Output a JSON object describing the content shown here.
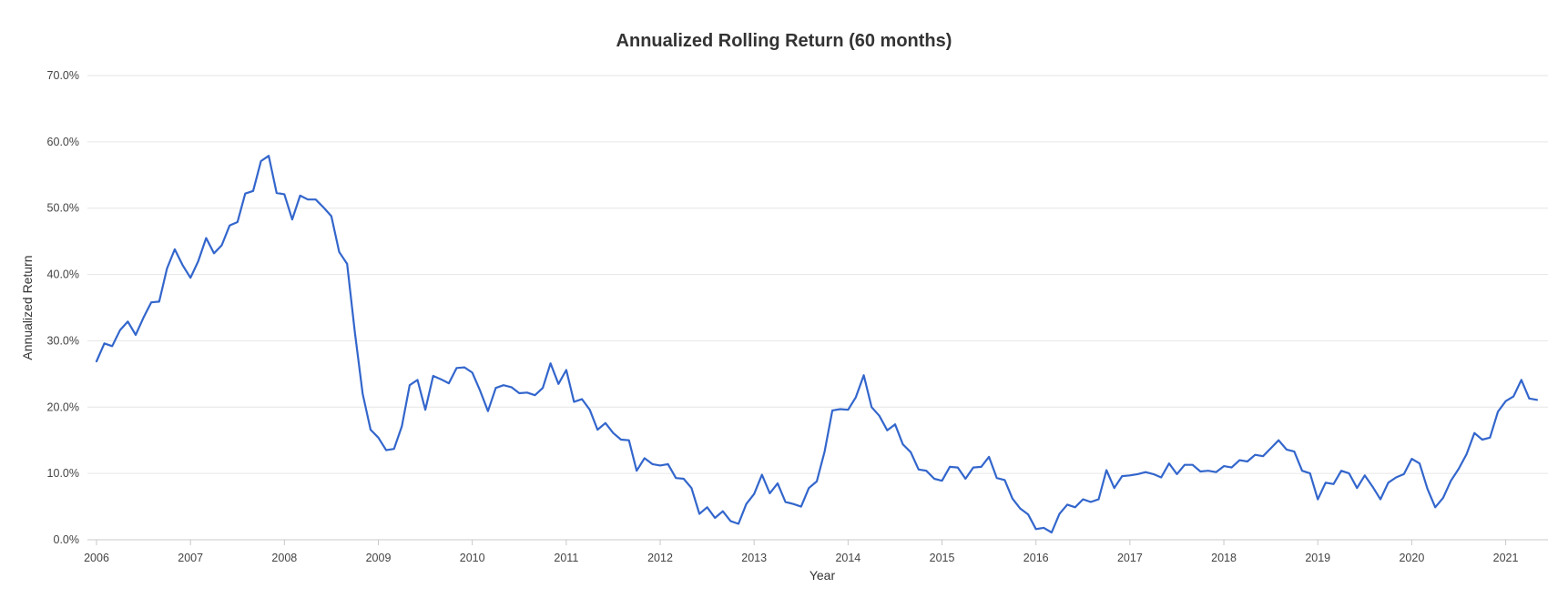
{
  "chart_data": {
    "type": "line",
    "title": "Annualized Rolling Return (60 months)",
    "xlabel": "Year",
    "ylabel": "Annualized Return",
    "xlim": [
      2006,
      2021.45
    ],
    "ylim": [
      0,
      70
    ],
    "x_ticks": [
      "2006",
      "2007",
      "2008",
      "2009",
      "2010",
      "2011",
      "2012",
      "2013",
      "2014",
      "2015",
      "2016",
      "2017",
      "2018",
      "2019",
      "2020",
      "2021"
    ],
    "y_ticks": [
      "0.0%",
      "10.0%",
      "20.0%",
      "30.0%",
      "40.0%",
      "50.0%",
      "60.0%",
      "70.0%"
    ],
    "grid": true,
    "legend": "none",
    "line_color": "#3366cc",
    "series": [
      {
        "x": [
          2006.0,
          2006.083,
          2006.167,
          2006.25,
          2006.333,
          2006.417,
          2006.5,
          2006.583,
          2006.667,
          2006.75,
          2006.833,
          2006.917,
          2007.0,
          2007.083,
          2007.167,
          2007.25,
          2007.333,
          2007.417,
          2007.5,
          2007.583,
          2007.667,
          2007.75,
          2007.833,
          2007.917,
          2008.0,
          2008.083,
          2008.167,
          2008.25,
          2008.333,
          2008.417,
          2008.5,
          2008.583,
          2008.667,
          2008.75,
          2008.833,
          2008.917,
          2009.0,
          2009.083,
          2009.167,
          2009.25,
          2009.333,
          2009.417,
          2009.5,
          2009.583,
          2009.667,
          2009.75,
          2009.833,
          2009.917,
          2010.0,
          2010.083,
          2010.167,
          2010.25,
          2010.333,
          2010.417,
          2010.5,
          2010.583,
          2010.667,
          2010.75,
          2010.833,
          2010.917,
          2011.0,
          2011.083,
          2011.167,
          2011.25,
          2011.333,
          2011.417,
          2011.5,
          2011.583,
          2011.667,
          2011.75,
          2011.833,
          2011.917,
          2012.0,
          2012.083,
          2012.167,
          2012.25,
          2012.333,
          2012.417,
          2012.5,
          2012.583,
          2012.667,
          2012.75,
          2012.833,
          2012.917,
          2013.0,
          2013.083,
          2013.167,
          2013.25,
          2013.333,
          2013.417,
          2013.5,
          2013.583,
          2013.667,
          2013.75,
          2013.833,
          2013.917,
          2014.0,
          2014.083,
          2014.167,
          2014.25,
          2014.333,
          2014.417,
          2014.5,
          2014.583,
          2014.667,
          2014.75,
          2014.833,
          2014.917,
          2015.0,
          2015.083,
          2015.167,
          2015.25,
          2015.333,
          2015.417,
          2015.5,
          2015.583,
          2015.667,
          2015.75,
          2015.833,
          2015.917,
          2016.0,
          2016.083,
          2016.167,
          2016.25,
          2016.333,
          2016.417,
          2016.5,
          2016.583,
          2016.667,
          2016.75,
          2016.833,
          2016.917,
          2017.0,
          2017.083,
          2017.167,
          2017.25,
          2017.333,
          2017.417,
          2017.5,
          2017.583,
          2017.667,
          2017.75,
          2017.833,
          2017.917,
          2018.0,
          2018.083,
          2018.167,
          2018.25,
          2018.333,
          2018.417,
          2018.5,
          2018.583,
          2018.667,
          2018.75,
          2018.833,
          2018.917,
          2019.0,
          2019.083,
          2019.167,
          2019.25,
          2019.333,
          2019.417,
          2019.5,
          2019.583,
          2019.667,
          2019.75,
          2019.833,
          2019.917,
          2020.0,
          2020.083,
          2020.167,
          2020.25,
          2020.333,
          2020.417,
          2020.5,
          2020.583,
          2020.667,
          2020.75,
          2020.833,
          2020.917,
          2021.0,
          2021.083,
          2021.167,
          2021.25,
          2021.333
        ],
        "y": [
          26.9,
          29.6,
          29.2,
          31.6,
          32.9,
          30.9,
          33.5,
          35.8,
          35.9,
          40.9,
          43.8,
          41.4,
          39.5,
          42.0,
          45.5,
          43.2,
          44.4,
          47.4,
          47.9,
          52.2,
          52.6,
          57.1,
          57.9,
          52.3,
          52.1,
          48.3,
          51.9,
          51.3,
          51.3,
          50.1,
          48.8,
          43.4,
          41.6,
          31.3,
          22.0,
          16.6,
          15.4,
          13.5,
          13.7,
          17.1,
          23.3,
          24.1,
          19.6,
          24.7,
          24.2,
          23.6,
          25.9,
          26.0,
          25.2,
          22.5,
          19.4,
          22.9,
          23.3,
          23.0,
          22.1,
          22.2,
          21.8,
          22.9,
          26.6,
          23.5,
          25.6,
          20.8,
          21.2,
          19.6,
          16.6,
          17.6,
          16.1,
          15.1,
          15.0,
          10.4,
          12.3,
          11.4,
          11.2,
          11.4,
          9.3,
          9.2,
          7.8,
          3.9,
          4.9,
          3.3,
          4.3,
          2.8,
          2.4,
          5.4,
          6.9,
          9.8,
          7.0,
          8.5,
          5.7,
          5.4,
          5.0,
          7.8,
          8.8,
          13.3,
          19.5,
          19.7,
          19.6,
          21.5,
          24.8,
          20.0,
          18.7,
          16.5,
          17.4,
          14.4,
          13.2,
          10.6,
          10.4,
          9.2,
          8.9,
          11.0,
          10.9,
          9.2,
          10.9,
          11.0,
          12.5,
          9.3,
          9.0,
          6.2,
          4.7,
          3.8,
          1.6,
          1.8,
          1.1,
          3.9,
          5.3,
          4.9,
          6.1,
          5.7,
          6.1,
          10.5,
          7.8,
          9.6,
          9.7,
          9.9,
          10.2,
          9.9,
          9.4,
          11.5,
          9.9,
          11.3,
          11.3,
          10.3,
          10.4,
          10.2,
          11.1,
          10.9,
          12.0,
          11.8,
          12.8,
          12.6,
          13.8,
          15.0,
          13.6,
          13.3,
          10.4,
          10.0,
          6.1,
          8.6,
          8.4,
          10.4,
          10.0,
          7.8,
          9.7,
          8.0,
          6.1,
          8.6,
          9.4,
          9.9,
          12.2,
          11.5,
          7.7,
          4.9,
          6.3,
          8.9,
          10.7,
          12.9,
          16.1,
          15.1,
          15.4,
          19.3,
          20.9,
          21.6,
          24.1,
          21.3,
          21.1
        ]
      }
    ]
  }
}
